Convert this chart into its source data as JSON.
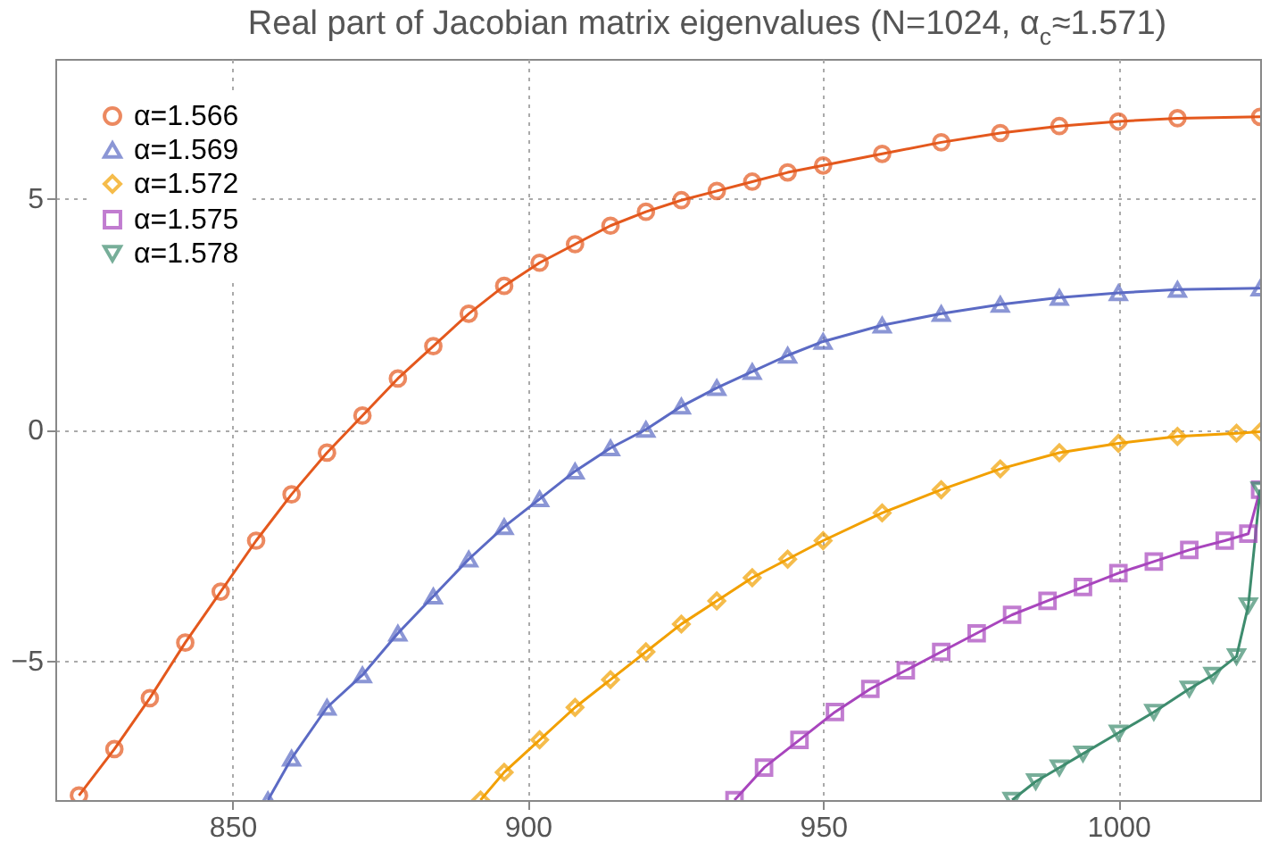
{
  "chart_data": {
    "type": "line",
    "title": "Real part of Jacobian matrix eigenvalues (N=1024, α$_{c}$≈1.571)",
    "xlim": [
      820,
      1024
    ],
    "xticks": [
      850,
      900,
      950,
      1000
    ],
    "ylim": [
      -8,
      8
    ],
    "yticks": [
      -5,
      0,
      5
    ],
    "grid": true,
    "legend": "top left",
    "line_style": "solid",
    "series": [
      {
        "name": "α=1.566",
        "color": "#e4581d",
        "marker": "circle",
        "x": [
          824,
          830,
          836,
          842,
          848,
          854,
          860,
          866,
          872,
          878,
          884,
          890,
          896,
          902,
          908,
          914,
          920,
          926,
          932,
          938,
          944,
          950,
          960,
          970,
          980,
          990,
          1000,
          1010,
          1024
        ],
        "values": [
          -7.9,
          -6.9,
          -5.8,
          -4.6,
          -3.5,
          -2.4,
          -1.4,
          -0.5,
          0.3,
          1.1,
          1.8,
          2.5,
          3.1,
          3.6,
          4.0,
          4.4,
          4.7,
          4.95,
          5.15,
          5.35,
          5.55,
          5.7,
          5.95,
          6.2,
          6.4,
          6.55,
          6.65,
          6.72,
          6.75
        ]
      },
      {
        "name": "α=1.569",
        "color": "#5b6ac4",
        "marker": "triangle",
        "x": [
          856,
          860,
          866,
          872,
          878,
          884,
          890,
          896,
          902,
          908,
          914,
          920,
          926,
          932,
          938,
          944,
          950,
          960,
          970,
          980,
          990,
          1000,
          1010,
          1024
        ],
        "values": [
          -8,
          -7.1,
          -6.0,
          -5.3,
          -4.4,
          -3.6,
          -2.8,
          -2.1,
          -1.5,
          -0.9,
          -0.4,
          0.0,
          0.5,
          0.9,
          1.25,
          1.6,
          1.9,
          2.25,
          2.5,
          2.7,
          2.85,
          2.95,
          3.02,
          3.05
        ]
      },
      {
        "name": "α=1.572",
        "color": "#f2a000",
        "marker": "diamond",
        "x": [
          892,
          896,
          902,
          908,
          914,
          920,
          926,
          932,
          938,
          944,
          950,
          960,
          970,
          980,
          990,
          1000,
          1010,
          1020,
          1024
        ],
        "values": [
          -8,
          -7.4,
          -6.7,
          -6.0,
          -5.4,
          -4.8,
          -4.2,
          -3.7,
          -3.2,
          -2.8,
          -2.4,
          -1.8,
          -1.3,
          -0.85,
          -0.5,
          -0.3,
          -0.15,
          -0.08,
          -0.05
        ]
      },
      {
        "name": "α=1.575",
        "color": "#a845bd",
        "marker": "square",
        "x": [
          935,
          940,
          946,
          952,
          958,
          964,
          970,
          976,
          982,
          988,
          994,
          1000,
          1006,
          1012,
          1018,
          1022,
          1024
        ],
        "values": [
          -8,
          -7.3,
          -6.7,
          -6.1,
          -5.6,
          -5.2,
          -4.8,
          -4.4,
          -4.0,
          -3.7,
          -3.4,
          -3.1,
          -2.85,
          -2.6,
          -2.4,
          -2.25,
          -1.3
        ]
      },
      {
        "name": "α=1.578",
        "color": "#3e8c6e",
        "marker": "triangle-down",
        "x": [
          982,
          986,
          990,
          994,
          1000,
          1006,
          1012,
          1016,
          1020,
          1022,
          1024
        ],
        "values": [
          -8,
          -7.6,
          -7.3,
          -7.0,
          -6.55,
          -6.1,
          -5.6,
          -5.3,
          -4.9,
          -3.8,
          -1.3
        ]
      }
    ]
  }
}
